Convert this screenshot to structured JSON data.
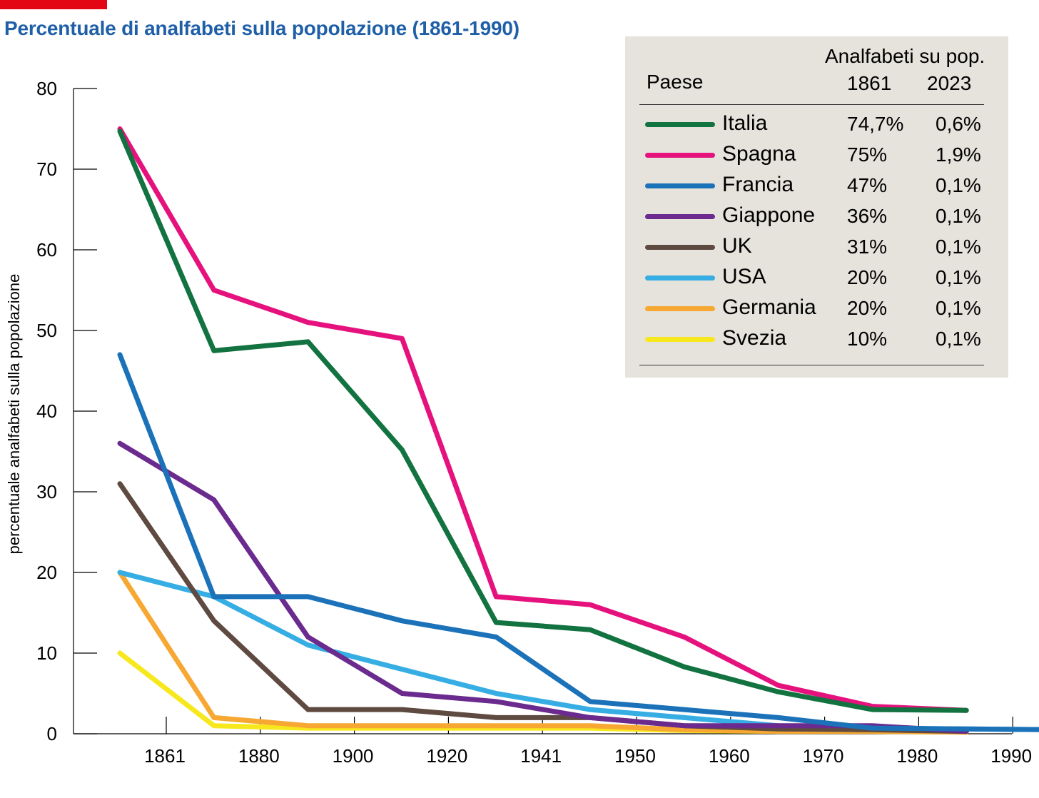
{
  "header": {
    "title": "Percentuale di analfabeti sulla popolazione (1861-1990)"
  },
  "colors": {
    "accent_bar": "#e30613",
    "title": "#1f5fa8",
    "legend_bg": "#e6e3dc"
  },
  "legend": {
    "header_top": "Analfabeti su pop.",
    "col_country": "Paese",
    "col_year1": "1861",
    "col_year2": "2023",
    "rows": [
      {
        "name": "Italia",
        "v1861": "74,7%",
        "v2023": "0,6%",
        "color": "#127240"
      },
      {
        "name": "Spagna",
        "v1861": "75%",
        "v2023": "1,9%",
        "color": "#e5127d"
      },
      {
        "name": "Francia",
        "v1861": "47%",
        "v2023": "0,1%",
        "color": "#1b72b9"
      },
      {
        "name": "Giappone",
        "v1861": "36%",
        "v2023": "0,1%",
        "color": "#6a2a8e"
      },
      {
        "name": "UK",
        "v1861": "31%",
        "v2023": "0,1%",
        "color": "#5e4a40"
      },
      {
        "name": "USA",
        "v1861": "20%",
        "v2023": "0,1%",
        "color": "#36ade3"
      },
      {
        "name": "Germania",
        "v1861": "20%",
        "v2023": "0,1%",
        "color": "#f6a833"
      },
      {
        "name": "Svezia",
        "v1861": "10%",
        "v2023": "0,1%",
        "color": "#f7e81d"
      }
    ]
  },
  "chart_data": {
    "type": "line",
    "title": "Percentuale di analfabeti sulla popolazione (1861-1990)",
    "xlabel": "",
    "ylabel": "percentuale analfabeti sulla popolazione",
    "ylim": [
      0,
      80
    ],
    "y_ticks": [
      0,
      10,
      20,
      30,
      40,
      50,
      60,
      70,
      80
    ],
    "x_tick_labels": [
      "1861",
      "1880",
      "1900",
      "1920",
      "1941",
      "1950",
      "1960",
      "1970",
      "1980",
      "1990"
    ],
    "x_points": [
      "1861",
      "1871",
      "1881",
      "1891",
      "1901",
      "1911",
      "1921",
      "1931",
      "1941",
      "1951",
      "1961"
    ],
    "grid": false,
    "legend_position": "top-right",
    "series": [
      {
        "name": "Italia",
        "color": "#127240",
        "values": [
          74.7,
          47.5,
          48.6,
          35.2,
          13.8,
          12.9,
          8.3,
          5.2,
          3,
          2.9,
          null
        ]
      },
      {
        "name": "Spagna",
        "color": "#e5127d",
        "values": [
          75,
          55,
          51,
          49,
          17,
          16,
          12,
          6,
          3.4,
          2.9,
          null
        ]
      },
      {
        "name": "Francia",
        "color": "#1b72b9",
        "values": [
          47,
          17,
          17,
          14,
          12,
          4,
          3,
          2,
          0.7,
          0.6,
          0.5
        ]
      },
      {
        "name": "Giappone",
        "color": "#6a2a8e",
        "values": [
          36,
          29,
          12,
          5,
          4,
          2,
          1,
          1,
          1,
          0.3,
          null
        ]
      },
      {
        "name": "UK",
        "color": "#5e4a40",
        "values": [
          31,
          14,
          3,
          3,
          2,
          2,
          1,
          0.6,
          0.5,
          0.3,
          null
        ]
      },
      {
        "name": "USA",
        "color": "#36ade3",
        "values": [
          20,
          17,
          11,
          8,
          5,
          3,
          2,
          1,
          0.7,
          0.6,
          0.5
        ]
      },
      {
        "name": "Germania",
        "color": "#f6a833",
        "values": [
          20,
          2,
          1,
          1,
          1,
          1,
          0.5,
          0.3,
          0.3,
          0.2,
          null
        ]
      },
      {
        "name": "Svezia",
        "color": "#f7e81d",
        "values": [
          10,
          1,
          0.7,
          0.7,
          0.7,
          0.7,
          0.4,
          0.3,
          0.3,
          0.2,
          null
        ]
      }
    ]
  }
}
